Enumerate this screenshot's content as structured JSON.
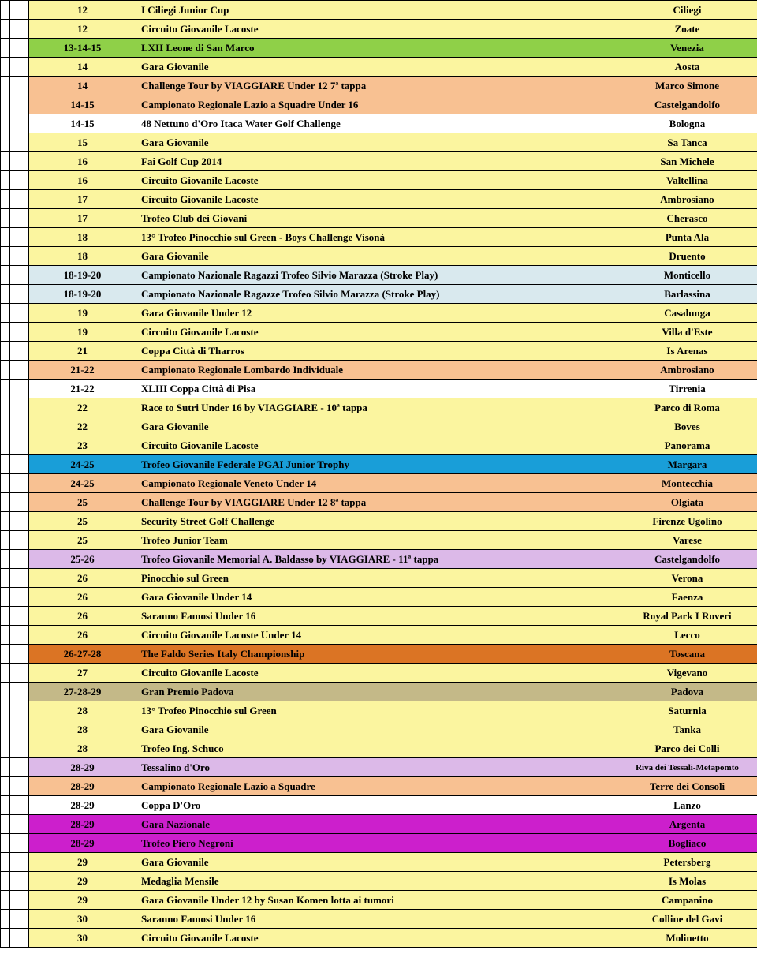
{
  "colors": {
    "white": "#ffffff",
    "yellow": "#fbf59f",
    "green": "#8fd048",
    "salmon": "#f8c192",
    "lightblue": "#d9e9ee",
    "blue": "#199ed8",
    "purple": "#dcb9e8",
    "darkorange": "#db7424",
    "tan": "#c4b988",
    "magenta": "#cc1fcc"
  },
  "rows": [
    {
      "date": "12",
      "event": "I Ciliegi Junior Cup",
      "loc": "Ciliegi",
      "c": "yellow"
    },
    {
      "date": "12",
      "event": "Circuito Giovanile Lacoste",
      "loc": "Zoate",
      "c": "yellow"
    },
    {
      "date": "13-14-15",
      "event": "LXII Leone di San Marco",
      "loc": "Venezia",
      "c": "green"
    },
    {
      "date": "14",
      "event": "Gara Giovanile",
      "loc": "Aosta",
      "c": "yellow"
    },
    {
      "date": "14",
      "event": "Challenge Tour by VIAGGIARE Under 12 7ª tappa",
      "loc": "Marco Simone",
      "c": "salmon"
    },
    {
      "date": "14-15",
      "event": "Campionato Regionale Lazio a Squadre Under 16",
      "loc": "Castelgandolfo",
      "c": "salmon"
    },
    {
      "date": "14-15",
      "event": "48 Nettuno d'Oro Itaca Water Golf Challenge",
      "loc": "Bologna",
      "c": "white"
    },
    {
      "date": "15",
      "event": "Gara Giovanile",
      "loc": "Sa Tanca",
      "c": "yellow"
    },
    {
      "date": "16",
      "event": "Fai Golf Cup 2014",
      "loc": "San Michele",
      "c": "yellow"
    },
    {
      "date": "16",
      "event": "Circuito Giovanile Lacoste",
      "loc": "Valtellina",
      "c": "yellow"
    },
    {
      "date": "17",
      "event": "Circuito Giovanile Lacoste",
      "loc": "Ambrosiano",
      "c": "yellow"
    },
    {
      "date": "17",
      "event": "Trofeo Club dei Giovani",
      "loc": "Cherasco",
      "c": "yellow"
    },
    {
      "date": "18",
      "event": "13° Trofeo Pinocchio sul Green - Boys Challenge Visonà",
      "loc": "Punta Ala",
      "c": "yellow"
    },
    {
      "date": "18",
      "event": "Gara Giovanile",
      "loc": "Druento",
      "c": "yellow"
    },
    {
      "date": "18-19-20",
      "event": "Campionato Nazionale Ragazzi Trofeo Silvio Marazza (Stroke Play)",
      "loc": "Monticello",
      "c": "lightblue"
    },
    {
      "date": "18-19-20",
      "event": "Campionato Nazionale Ragazze Trofeo Silvio Marazza (Stroke Play)",
      "loc": "Barlassina",
      "c": "lightblue"
    },
    {
      "date": "19",
      "event": "Gara Giovanile Under 12",
      "loc": "Casalunga",
      "c": "yellow"
    },
    {
      "date": "19",
      "event": "Circuito Giovanile Lacoste",
      "loc": "Villa d'Este",
      "c": "yellow"
    },
    {
      "date": "21",
      "event": "Coppa Città di Tharros",
      "loc": "Is Arenas",
      "c": "yellow"
    },
    {
      "date": "21-22",
      "event": "Campionato Regionale Lombardo Individuale",
      "loc": "Ambrosiano",
      "c": "salmon"
    },
    {
      "date": "21-22",
      "event": "XLIII Coppa Città di Pisa",
      "loc": "Tirrenia",
      "c": "white"
    },
    {
      "date": "22",
      "event": "Race to Sutri Under 16 by VIAGGIARE - 10ª tappa",
      "loc": "Parco di Roma",
      "c": "yellow"
    },
    {
      "date": "22",
      "event": "Gara Giovanile",
      "loc": "Boves",
      "c": "yellow"
    },
    {
      "date": "23",
      "event": "Circuito Giovanile Lacoste",
      "loc": "Panorama",
      "c": "yellow"
    },
    {
      "date": "24-25",
      "event": "Trofeo Giovanile Federale PGAI Junior Trophy",
      "loc": "Margara",
      "c": "blue"
    },
    {
      "date": "24-25",
      "event": "Campionato Regionale Veneto Under 14",
      "loc": "Montecchia",
      "c": "salmon"
    },
    {
      "date": "25",
      "event": "Challenge Tour by VIAGGIARE Under 12 8ª tappa",
      "loc": "Olgiata",
      "c": "salmon"
    },
    {
      "date": "25",
      "event": "Security Street Golf Challenge",
      "loc": "Firenze Ugolino",
      "c": "yellow"
    },
    {
      "date": "25",
      "event": "Trofeo Junior Team",
      "loc": "Varese",
      "c": "yellow"
    },
    {
      "date": "25-26",
      "event": "Trofeo Giovanile Memorial A. Baldasso by VIAGGIARE - 11ª tappa",
      "loc": "Castelgandolfo",
      "c": "purple"
    },
    {
      "date": "26",
      "event": "Pinocchio sul Green",
      "loc": "Verona",
      "c": "yellow"
    },
    {
      "date": "26",
      "event": "Gara Giovanile Under 14",
      "loc": "Faenza",
      "c": "yellow"
    },
    {
      "date": "26",
      "event": "Saranno Famosi Under 16",
      "loc": "Royal Park I Roveri",
      "c": "yellow"
    },
    {
      "date": "26",
      "event": "Circuito Giovanile Lacoste Under 14",
      "loc": "Lecco",
      "c": "yellow"
    },
    {
      "date": "26-27-28",
      "event": "The Faldo Series Italy Championship",
      "loc": "Toscana",
      "c": "darkorange"
    },
    {
      "date": "27",
      "event": "Circuito Giovanile Lacoste",
      "loc": "Vigevano",
      "c": "yellow"
    },
    {
      "date": "27-28-29",
      "event": "Gran Premio Padova",
      "loc": "Padova",
      "c": "tan"
    },
    {
      "date": "28",
      "event": "13° Trofeo Pinocchio sul Green",
      "loc": "Saturnia",
      "c": "yellow"
    },
    {
      "date": "28",
      "event": "Gara Giovanile",
      "loc": "Tanka",
      "c": "yellow"
    },
    {
      "date": "28",
      "event": "Trofeo Ing. Schuco",
      "loc": "Parco dei Colli",
      "c": "yellow"
    },
    {
      "date": "28-29",
      "event": "Tessalino d'Oro",
      "loc": "Riva dei Tessali-Metapomto",
      "c": "purple",
      "small": true
    },
    {
      "date": "28-29",
      "event": "Campionato Regionale Lazio a Squadre",
      "loc": "Terre dei Consoli",
      "c": "salmon"
    },
    {
      "date": "28-29",
      "event": "Coppa D'Oro",
      "loc": "Lanzo",
      "c": "white"
    },
    {
      "date": "28-29",
      "event": "Gara Nazionale",
      "loc": "Argenta",
      "c": "magenta"
    },
    {
      "date": "28-29",
      "event": "Trofeo Piero Negroni",
      "loc": "Bogliaco",
      "c": "magenta"
    },
    {
      "date": "29",
      "event": "Gara Giovanile",
      "loc": "Petersberg",
      "c": "yellow"
    },
    {
      "date": "29",
      "event": "Medaglia Mensile",
      "loc": "Is Molas",
      "c": "yellow"
    },
    {
      "date": "29",
      "event": "Gara Giovanile Under 12 by Susan Komen lotta ai tumori",
      "loc": "Campanino",
      "c": "yellow"
    },
    {
      "date": "30",
      "event": "Saranno Famosi Under 16",
      "loc": "Colline del Gavi",
      "c": "yellow"
    },
    {
      "date": "30",
      "event": "Circuito Giovanile Lacoste",
      "loc": "Molinetto",
      "c": "yellow"
    }
  ]
}
